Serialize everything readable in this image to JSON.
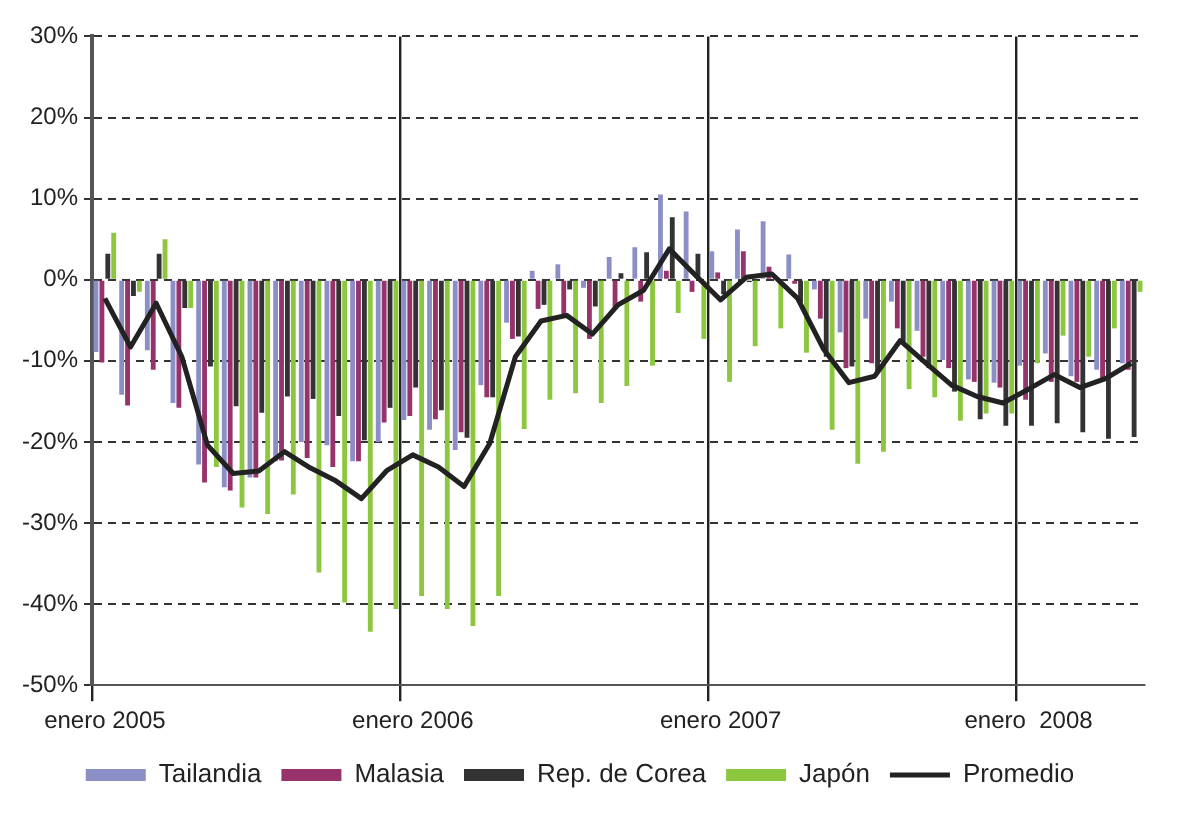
{
  "chart_data": {
    "type": "bar",
    "categories": [
      "enero 2005",
      null,
      null,
      null,
      null,
      null,
      null,
      null,
      null,
      null,
      null,
      null,
      "enero 2006",
      null,
      null,
      null,
      null,
      null,
      null,
      null,
      null,
      null,
      null,
      null,
      "enero 2007",
      null,
      null,
      null,
      null,
      null,
      null,
      null,
      null,
      null,
      null,
      null,
      "enero  2008",
      null,
      null,
      null,
      null
    ],
    "series": [
      {
        "name": "Tailandia",
        "color": "#8c8fc6",
        "values": [
          -8.9,
          -14.2,
          -8.7,
          -15.2,
          -22.8,
          -25.6,
          -24.4,
          -22.4,
          -20,
          -20.4,
          -22.4,
          -20,
          -17.3,
          -18.5,
          -21,
          -13,
          -5.3,
          1.1,
          1.9,
          -1,
          2.8,
          4,
          10.5,
          8.4,
          3.5,
          6.2,
          7.2,
          3.1,
          -1.2,
          -6.5,
          -4.8,
          -2.7,
          -6.3,
          -9.9,
          -12.3,
          -12.7,
          -10.6,
          -9.1,
          -11.9,
          -11.1,
          -10.3
        ]
      },
      {
        "name": "Malasia",
        "color": "#96336a",
        "values": [
          -10.2,
          -15.5,
          -11.1,
          -15.8,
          -25,
          -26,
          -24.4,
          -22.3,
          -22,
          -23.1,
          -22.4,
          -17.6,
          -16.8,
          -17.2,
          -18.8,
          -14.5,
          -7.3,
          -3.6,
          -4.3,
          -7.3,
          -3.6,
          -2.7,
          1.1,
          -1.5,
          0.9,
          3.5,
          1.6,
          -0.5,
          -4.8,
          -10.9,
          -10.3,
          -6,
          -9.5,
          -10.9,
          -12.6,
          -13.3,
          -14.8,
          -12.6,
          -12.6,
          -12.3,
          -11.1
        ]
      },
      {
        "name": "Rep. de Corea",
        "color": "#333333",
        "values": [
          3.2,
          -2,
          3.2,
          -3.5,
          -10.7,
          -15.6,
          -16.4,
          -14.4,
          -14.7,
          -16.8,
          -19.8,
          -15.8,
          -13.3,
          -16.1,
          -19.5,
          -14.5,
          -7,
          -3.1,
          -1.2,
          -3.3,
          0.8,
          3.4,
          7.7,
          3.2,
          -1.8,
          -0.3,
          0,
          -2.8,
          -9.5,
          -10.7,
          -11.3,
          -7.8,
          -10.9,
          -13.8,
          -17.2,
          -18,
          -18,
          -17.7,
          -18.8,
          -19.6,
          -19.4
        ]
      },
      {
        "name": "Japón",
        "color": "#8dc63f",
        "values": [
          5.8,
          -1.5,
          5,
          -3.5,
          -23.1,
          -28.1,
          -28.9,
          -26.5,
          -36.1,
          -39.8,
          -43.4,
          -40.6,
          -39,
          -40.6,
          -42.7,
          -39,
          -18.4,
          -14.8,
          -14,
          -15.2,
          -13.1,
          -10.6,
          -4.1,
          -7.3,
          -12.6,
          -8.2,
          -6,
          -9,
          -18.5,
          -22.7,
          -21.2,
          -13.5,
          -14.5,
          -17.4,
          -16.5,
          -16.5,
          -10.3,
          -6.9,
          -9.5,
          -6,
          -1.5
        ]
      },
      {
        "name": "Promedio",
        "type": "line",
        "color": "#222222",
        "values": [
          -2.3,
          -8.3,
          -2.9,
          -9.5,
          -20.4,
          -23.9,
          -23.6,
          -21.2,
          -23.2,
          -24.8,
          -27,
          -23.5,
          -21.6,
          -23.1,
          -25.5,
          -20.2,
          -9.5,
          -5.1,
          -4.4,
          -6.7,
          -3.1,
          -1.3,
          3.8,
          0.6,
          -2.5,
          0.3,
          0.7,
          -2.3,
          -8.5,
          -12.7,
          -11.9,
          -7.5,
          -10.3,
          -13,
          -14.4,
          -15.2,
          -13.5,
          -11.7,
          -13.3,
          -12.2,
          -10.3
        ]
      }
    ],
    "ylim": [
      -50,
      30
    ],
    "yticks": [
      {
        "value": -50,
        "label": "-50%"
      },
      {
        "value": -40,
        "label": "-40%"
      },
      {
        "value": -30,
        "label": "-30%"
      },
      {
        "value": -20,
        "label": "-20%"
      },
      {
        "value": -10,
        "label": "-10%"
      },
      {
        "value": 0,
        "label": "0%"
      },
      {
        "value": 10,
        "label": "10%"
      },
      {
        "value": 20,
        "label": "20%"
      },
      {
        "value": 30,
        "label": "30%"
      }
    ],
    "grid": true,
    "legend": "bottom",
    "marker": "none",
    "line_style": "solid"
  }
}
